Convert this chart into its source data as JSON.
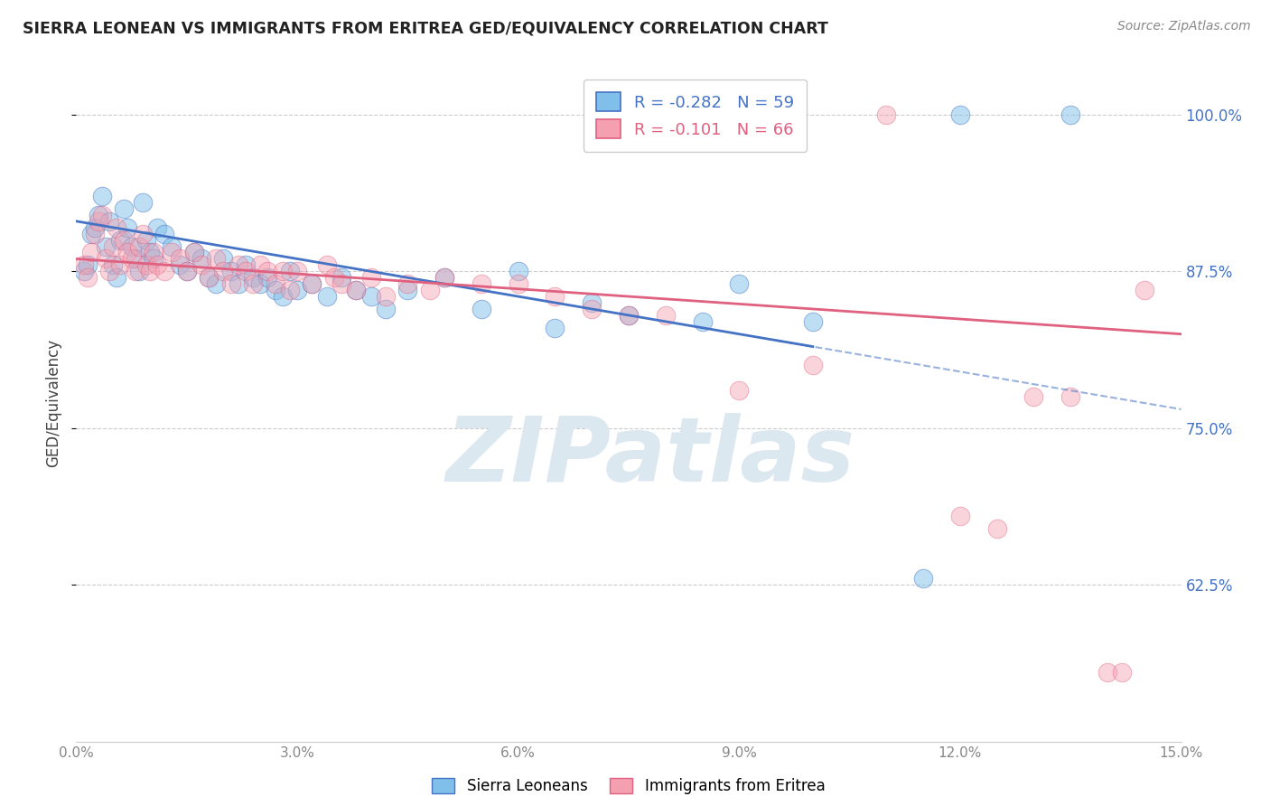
{
  "title": "SIERRA LEONEAN VS IMMIGRANTS FROM ERITREA GED/EQUIVALENCY CORRELATION CHART",
  "source": "Source: ZipAtlas.com",
  "ylabel": "GED/Equivalency",
  "xmin": 0.0,
  "xmax": 15.0,
  "ymin": 50.0,
  "ymax": 104.0,
  "yticks": [
    62.5,
    75.0,
    87.5,
    100.0
  ],
  "ytick_labels": [
    "62.5%",
    "75.0%",
    "87.5%",
    "100.0%"
  ],
  "xticks": [
    0,
    3,
    6,
    9,
    12,
    15
  ],
  "xtick_labels": [
    "0.0%",
    "3.0%",
    "6.0%",
    "9.0%",
    "12.0%",
    "15.0%"
  ],
  "legend_blue_r": "-0.282",
  "legend_blue_n": "59",
  "legend_pink_r": "-0.101",
  "legend_pink_n": "66",
  "blue_color": "#7fbfea",
  "pink_color": "#f4a0b0",
  "blue_line_color": "#4472c4",
  "pink_line_color": "#e06080",
  "watermark": "ZIPatlas",
  "watermark_color": "#dce8f0",
  "blue_scatter_x": [
    0.1,
    0.15,
    0.2,
    0.25,
    0.3,
    0.35,
    0.4,
    0.45,
    0.5,
    0.55,
    0.6,
    0.65,
    0.7,
    0.75,
    0.8,
    0.85,
    0.9,
    0.95,
    1.0,
    1.05,
    1.1,
    1.2,
    1.3,
    1.4,
    1.5,
    1.6,
    1.7,
    1.8,
    1.9,
    2.0,
    2.1,
    2.2,
    2.3,
    2.4,
    2.5,
    2.6,
    2.7,
    2.8,
    2.9,
    3.0,
    3.2,
    3.4,
    3.6,
    3.8,
    4.0,
    4.2,
    4.5,
    5.0,
    5.5,
    6.0,
    6.5,
    7.0,
    7.5,
    8.5,
    9.0,
    10.0,
    11.5,
    12.0,
    13.5
  ],
  "blue_scatter_y": [
    87.5,
    88.0,
    90.5,
    91.0,
    92.0,
    93.5,
    89.5,
    91.5,
    88.0,
    87.0,
    90.0,
    92.5,
    91.0,
    89.5,
    88.5,
    87.5,
    93.0,
    90.0,
    89.0,
    88.5,
    91.0,
    90.5,
    89.5,
    88.0,
    87.5,
    89.0,
    88.5,
    87.0,
    86.5,
    88.5,
    87.5,
    86.5,
    88.0,
    87.0,
    86.5,
    87.0,
    86.0,
    85.5,
    87.5,
    86.0,
    86.5,
    85.5,
    87.0,
    86.0,
    85.5,
    84.5,
    86.0,
    87.0,
    84.5,
    87.5,
    83.0,
    85.0,
    84.0,
    83.5,
    86.5,
    83.5,
    63.0,
    100.0,
    100.0
  ],
  "pink_scatter_x": [
    0.1,
    0.15,
    0.2,
    0.25,
    0.3,
    0.35,
    0.4,
    0.45,
    0.5,
    0.55,
    0.6,
    0.65,
    0.7,
    0.75,
    0.8,
    0.85,
    0.9,
    0.95,
    1.0,
    1.05,
    1.1,
    1.2,
    1.3,
    1.4,
    1.5,
    1.6,
    1.7,
    1.8,
    1.9,
    2.0,
    2.1,
    2.2,
    2.3,
    2.4,
    2.5,
    2.6,
    2.7,
    2.8,
    2.9,
    3.0,
    3.2,
    3.4,
    3.5,
    3.6,
    3.8,
    4.0,
    4.2,
    4.5,
    4.8,
    5.0,
    5.5,
    6.0,
    6.5,
    7.0,
    7.5,
    8.0,
    9.0,
    10.0,
    11.0,
    12.0,
    12.5,
    13.0,
    13.5,
    14.0,
    14.2,
    14.5
  ],
  "pink_scatter_y": [
    88.0,
    87.0,
    89.0,
    90.5,
    91.5,
    92.0,
    88.5,
    87.5,
    89.5,
    91.0,
    88.0,
    90.0,
    89.0,
    88.5,
    87.5,
    89.5,
    90.5,
    88.0,
    87.5,
    89.0,
    88.0,
    87.5,
    89.0,
    88.5,
    87.5,
    89.0,
    88.0,
    87.0,
    88.5,
    87.5,
    86.5,
    88.0,
    87.5,
    86.5,
    88.0,
    87.5,
    86.5,
    87.5,
    86.0,
    87.5,
    86.5,
    88.0,
    87.0,
    86.5,
    86.0,
    87.0,
    85.5,
    86.5,
    86.0,
    87.0,
    86.5,
    86.5,
    85.5,
    84.5,
    84.0,
    84.0,
    78.0,
    80.0,
    100.0,
    68.0,
    67.0,
    77.5,
    77.5,
    55.5,
    55.5,
    86.0
  ]
}
